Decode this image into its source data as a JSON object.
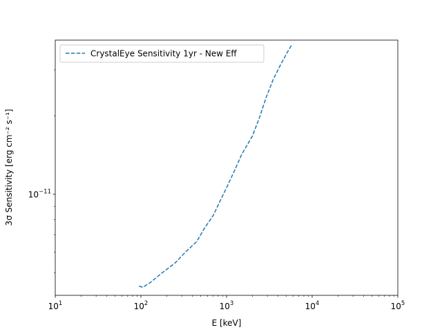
{
  "chart_data": {
    "type": "line",
    "xscale": "log",
    "yscale": "log",
    "xlim": [
      10,
      100000
    ],
    "ylim": [
      4.1e-12,
      3.9e-11
    ],
    "xlabel": "E [keV]",
    "ylabel": "3σ Sensitivity [erg cm⁻² s⁻¹]",
    "legend_position": "top-left",
    "x_major_ticks": [
      {
        "value": 10,
        "base": "10",
        "exp": "1"
      },
      {
        "value": 100,
        "base": "10",
        "exp": "2"
      },
      {
        "value": 1000,
        "base": "10",
        "exp": "3"
      },
      {
        "value": 10000,
        "base": "10",
        "exp": "4"
      },
      {
        "value": 100000,
        "base": "10",
        "exp": "5"
      }
    ],
    "y_major_ticks": [
      {
        "value": 1e-11,
        "base": "10",
        "exp": "−11"
      }
    ],
    "series": [
      {
        "name": "CrystalEye Sensitivity 1yr - New Eff",
        "color": "#1f77b4",
        "linestyle": "dashed",
        "x": [
          95,
          105,
          130,
          170,
          250,
          330,
          450,
          550,
          700,
          850,
          1000,
          1250,
          1500,
          2000,
          2400,
          2900,
          3500,
          4300,
          5000,
          5800
        ],
        "y": [
          4.45e-12,
          4.4e-12,
          4.6e-12,
          4.95e-12,
          5.45e-12,
          6e-12,
          6.6e-12,
          7.4e-12,
          8.3e-12,
          9.5e-12,
          1.06e-11,
          1.24e-11,
          1.42e-11,
          1.67e-11,
          1.95e-11,
          2.35e-11,
          2.75e-11,
          3.15e-11,
          3.45e-11,
          3.75e-11
        ]
      }
    ]
  }
}
